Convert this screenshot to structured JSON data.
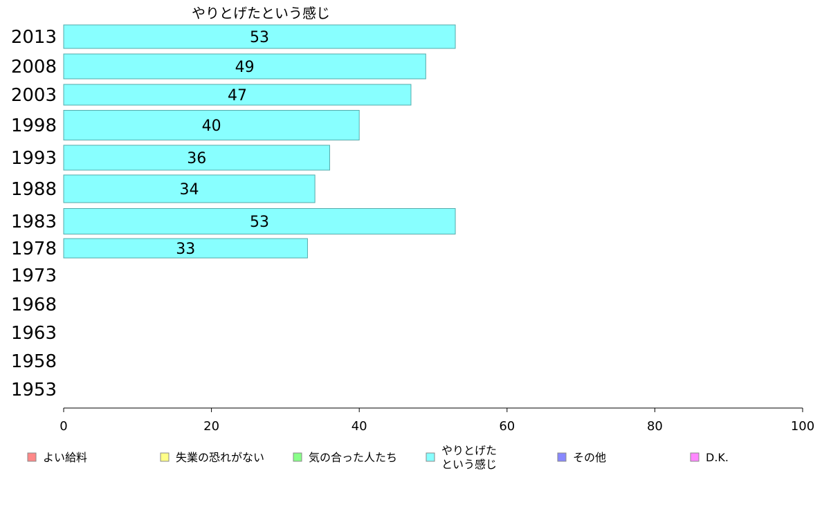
{
  "chart_data": {
    "type": "bar",
    "orientation": "horizontal",
    "title": "やりとげたという感じ",
    "categories": [
      "2013",
      "2008",
      "2003",
      "1998",
      "1993",
      "1988",
      "1983",
      "1978",
      "1973",
      "1968",
      "1963",
      "1958",
      "1953"
    ],
    "series": [
      {
        "name": "やりとげたという感じ",
        "values": [
          53,
          49,
          47,
          40,
          36,
          34,
          53,
          33,
          null,
          null,
          null,
          null,
          null
        ],
        "color": "#88ffff"
      }
    ],
    "data_labels": [
      "53",
      "49",
      "47",
      "40",
      "36",
      "34",
      "53",
      "33"
    ],
    "xlim": [
      0,
      100
    ],
    "x_ticks": [
      0,
      20,
      40,
      60,
      80,
      100
    ],
    "x_tick_labels": [
      "0",
      "20",
      "40",
      "60",
      "80",
      "100"
    ],
    "grid": false,
    "legend_position": "bottom",
    "legend": [
      {
        "lines": [
          "よい給料"
        ],
        "color": "#ff8888"
      },
      {
        "lines": [
          "失業の恐れがない"
        ],
        "color": "#ffff88"
      },
      {
        "lines": [
          "気の合った人たち"
        ],
        "color": "#88ff88"
      },
      {
        "lines": [
          "やりとげた",
          "という感じ"
        ],
        "color": "#88ffff"
      },
      {
        "lines": [
          "その他"
        ],
        "color": "#8888ff"
      },
      {
        "lines": [
          "D.K."
        ],
        "color": "#ff88ff"
      }
    ],
    "colors": {
      "bar_stroke": "#55aaaa",
      "axis": "#000000",
      "legend_stroke": "#888888"
    }
  }
}
